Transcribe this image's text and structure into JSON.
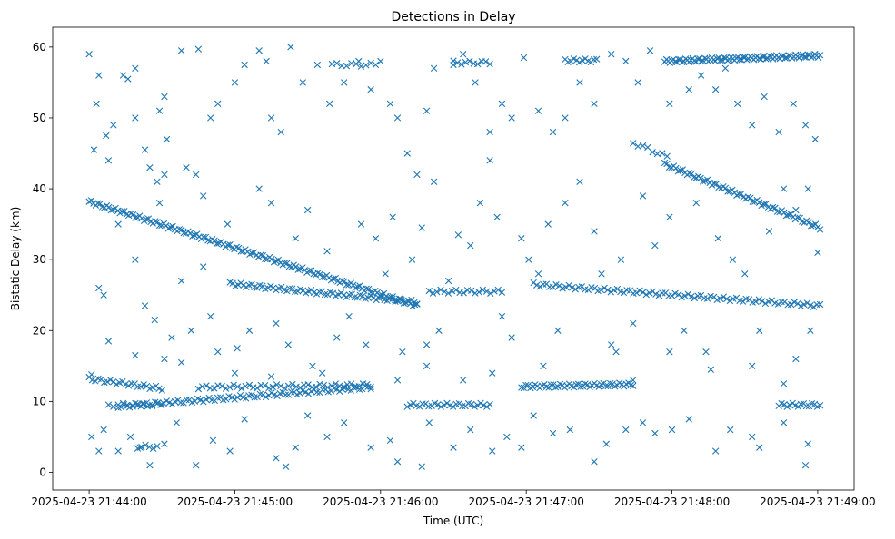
{
  "chart_data": {
    "type": "scatter",
    "title": "Detections in Delay",
    "xlabel": "Time (UTC)",
    "ylabel": "Bistatic Delay (km)",
    "x_units": "seconds after 2025-04-23 21:44:00",
    "xlim": [
      -15,
      315
    ],
    "ylim": [
      -2.5,
      62.8
    ],
    "x_ticks": [
      {
        "value": 0,
        "label": "2025-04-23 21:44:00"
      },
      {
        "value": 60,
        "label": "2025-04-23 21:45:00"
      },
      {
        "value": 120,
        "label": "2025-04-23 21:46:00"
      },
      {
        "value": 180,
        "label": "2025-04-23 21:47:00"
      },
      {
        "value": 240,
        "label": "2025-04-23 21:48:00"
      },
      {
        "value": 300,
        "label": "2025-04-23 21:49:00"
      }
    ],
    "y_ticks": [
      0,
      10,
      20,
      30,
      40,
      50,
      60
    ],
    "marker": "x",
    "color": "#1f77b4",
    "grid": false,
    "tracks": [
      {
        "x": [
          0,
          135
        ],
        "y": [
          38.2,
          23.5
        ],
        "n": 150
      },
      {
        "x": [
          58,
          135
        ],
        "y": [
          26.6,
          24.0
        ],
        "n": 70
      },
      {
        "x": [
          0,
          30
        ],
        "y": [
          13.2,
          11.8
        ],
        "n": 25
      },
      {
        "x": [
          8,
          30
        ],
        "y": [
          9.5,
          9.5
        ],
        "n": 12
      },
      {
        "x": [
          12,
          116
        ],
        "y": [
          9.3,
          12.0
        ],
        "n": 90
      },
      {
        "x": [
          45,
          116
        ],
        "y": [
          12.0,
          12.3
        ],
        "n": 45
      },
      {
        "x": [
          237,
          301
        ],
        "y": [
          58.0,
          58.8
        ],
        "n": 90
      },
      {
        "x": [
          237,
          301
        ],
        "y": [
          43.5,
          34.5
        ],
        "n": 70
      },
      {
        "x": [
          183,
          301
        ],
        "y": [
          26.5,
          23.5
        ],
        "n": 90
      },
      {
        "x": [
          140,
          170
        ],
        "y": [
          25.5,
          25.5
        ],
        "n": 20
      },
      {
        "x": [
          178,
          224
        ],
        "y": [
          12.1,
          12.4
        ],
        "n": 50
      },
      {
        "x": [
          131,
          165
        ],
        "y": [
          9.5,
          9.5
        ],
        "n": 28
      },
      {
        "x": [
          284,
          301
        ],
        "y": [
          9.5,
          9.5
        ],
        "n": 16
      },
      {
        "x": [
          100,
          118
        ],
        "y": [
          57.5,
          57.5
        ],
        "n": 10
      },
      {
        "x": [
          150,
          165
        ],
        "y": [
          57.8,
          57.8
        ],
        "n": 10
      },
      {
        "x": [
          196,
          209
        ],
        "y": [
          58.1,
          58.1
        ],
        "n": 12
      },
      {
        "x": [
          224,
          238
        ],
        "y": [
          46.5,
          44.5
        ],
        "n": 8
      },
      {
        "x": [
          20,
          28
        ],
        "y": [
          3.6,
          3.6
        ],
        "n": 6
      }
    ],
    "points": [
      [
        0,
        59
      ],
      [
        3,
        52
      ],
      [
        4,
        56
      ],
      [
        7,
        47.5
      ],
      [
        8,
        44
      ],
      [
        2,
        45.5
      ],
      [
        10,
        49
      ],
      [
        14,
        56
      ],
      [
        16,
        55.5
      ],
      [
        19,
        57
      ],
      [
        19,
        50
      ],
      [
        23,
        45.5
      ],
      [
        25,
        43
      ],
      [
        28,
        41
      ],
      [
        29,
        38
      ],
      [
        31,
        42
      ],
      [
        32,
        47
      ],
      [
        29,
        51
      ],
      [
        31,
        53
      ],
      [
        38,
        59.5
      ],
      [
        45,
        59.7
      ],
      [
        40,
        43
      ],
      [
        44,
        42
      ],
      [
        47,
        39
      ],
      [
        50,
        50
      ],
      [
        53,
        52
      ],
      [
        60,
        55
      ],
      [
        64,
        57.5
      ],
      [
        70,
        59.5
      ],
      [
        73,
        58
      ],
      [
        75,
        50
      ],
      [
        79,
        48
      ],
      [
        83,
        60
      ],
      [
        88,
        55
      ],
      [
        94,
        57.5
      ],
      [
        99,
        52
      ],
      [
        105,
        55
      ],
      [
        111,
        58
      ],
      [
        116,
        54
      ],
      [
        120,
        58
      ],
      [
        124,
        52
      ],
      [
        127,
        50
      ],
      [
        131,
        45
      ],
      [
        135,
        42
      ],
      [
        139,
        51
      ],
      [
        142,
        57
      ],
      [
        150,
        57.5
      ],
      [
        154,
        59
      ],
      [
        159,
        55
      ],
      [
        165,
        48
      ],
      [
        170,
        52
      ],
      [
        174,
        50
      ],
      [
        179,
        58.5
      ],
      [
        185,
        51
      ],
      [
        191,
        48
      ],
      [
        196,
        50
      ],
      [
        202,
        55
      ],
      [
        208,
        52
      ],
      [
        215,
        59
      ],
      [
        221,
        58
      ],
      [
        226,
        55
      ],
      [
        231,
        59.5
      ],
      [
        239,
        52
      ],
      [
        247,
        54
      ],
      [
        252,
        56
      ],
      [
        258,
        54
      ],
      [
        262,
        57
      ],
      [
        267,
        52
      ],
      [
        273,
        49
      ],
      [
        278,
        53
      ],
      [
        284,
        48
      ],
      [
        290,
        52
      ],
      [
        295,
        49
      ],
      [
        299,
        47
      ],
      [
        4,
        26
      ],
      [
        6,
        25
      ],
      [
        8,
        18.5
      ],
      [
        12,
        35
      ],
      [
        19,
        30
      ],
      [
        23,
        23.5
      ],
      [
        27,
        21.5
      ],
      [
        31,
        16
      ],
      [
        34,
        19
      ],
      [
        38,
        27
      ],
      [
        42,
        20
      ],
      [
        47,
        29
      ],
      [
        50,
        22
      ],
      [
        53,
        17
      ],
      [
        57,
        35
      ],
      [
        61,
        17.5
      ],
      [
        66,
        20
      ],
      [
        70,
        40
      ],
      [
        75,
        38
      ],
      [
        77,
        21
      ],
      [
        82,
        18
      ],
      [
        85,
        33
      ],
      [
        90,
        37
      ],
      [
        92,
        15
      ],
      [
        98,
        31.2
      ],
      [
        102,
        19
      ],
      [
        107,
        22
      ],
      [
        112,
        35
      ],
      [
        114,
        18
      ],
      [
        118,
        33
      ],
      [
        122,
        28
      ],
      [
        125,
        36
      ],
      [
        129,
        17
      ],
      [
        133,
        30
      ],
      [
        137,
        34.5
      ],
      [
        139,
        18
      ],
      [
        142,
        41
      ],
      [
        144,
        20
      ],
      [
        148,
        27
      ],
      [
        152,
        33.5
      ],
      [
        157,
        32
      ],
      [
        161,
        38
      ],
      [
        165,
        44
      ],
      [
        168,
        36
      ],
      [
        170,
        22
      ],
      [
        174,
        19
      ],
      [
        178,
        33
      ],
      [
        181,
        30
      ],
      [
        185,
        28
      ],
      [
        189,
        35
      ],
      [
        193,
        20
      ],
      [
        196,
        38
      ],
      [
        202,
        41
      ],
      [
        208,
        34
      ],
      [
        211,
        28
      ],
      [
        215,
        18
      ],
      [
        219,
        30
      ],
      [
        224,
        21
      ],
      [
        228,
        39
      ],
      [
        233,
        32
      ],
      [
        239,
        36
      ],
      [
        245,
        20
      ],
      [
        250,
        38
      ],
      [
        254,
        17
      ],
      [
        259,
        33
      ],
      [
        265,
        30
      ],
      [
        270,
        28
      ],
      [
        276,
        20
      ],
      [
        280,
        34
      ],
      [
        286,
        40
      ],
      [
        291,
        37
      ],
      [
        296,
        40
      ],
      [
        300,
        31
      ],
      [
        297,
        20
      ],
      [
        1,
        5
      ],
      [
        4,
        3
      ],
      [
        6,
        6
      ],
      [
        12,
        3
      ],
      [
        17,
        5
      ],
      [
        21,
        3.5
      ],
      [
        25,
        1
      ],
      [
        31,
        4
      ],
      [
        36,
        7
      ],
      [
        44,
        1
      ],
      [
        51,
        4.5
      ],
      [
        58,
        3
      ],
      [
        64,
        7.5
      ],
      [
        77,
        2
      ],
      [
        81,
        0.8
      ],
      [
        85,
        3.5
      ],
      [
        90,
        8
      ],
      [
        98,
        5
      ],
      [
        105,
        7
      ],
      [
        116,
        3.5
      ],
      [
        124,
        4.5
      ],
      [
        127,
        1.5
      ],
      [
        137,
        0.8
      ],
      [
        140,
        7
      ],
      [
        150,
        3.5
      ],
      [
        157,
        6
      ],
      [
        166,
        3
      ],
      [
        172,
        5
      ],
      [
        178,
        3.5
      ],
      [
        183,
        8
      ],
      [
        191,
        5.5
      ],
      [
        198,
        6
      ],
      [
        208,
        1.5
      ],
      [
        213,
        4
      ],
      [
        221,
        6
      ],
      [
        228,
        7
      ],
      [
        233,
        5.5
      ],
      [
        240,
        6
      ],
      [
        247,
        7.5
      ],
      [
        258,
        3
      ],
      [
        264,
        6
      ],
      [
        273,
        5
      ],
      [
        276,
        3.5
      ],
      [
        286,
        7
      ],
      [
        295,
        1
      ],
      [
        296,
        4
      ],
      [
        1,
        13.8
      ],
      [
        19,
        16.5
      ],
      [
        38,
        15.5
      ],
      [
        60,
        14
      ],
      [
        75,
        13.5
      ],
      [
        96,
        14
      ],
      [
        127,
        13
      ],
      [
        139,
        15
      ],
      [
        154,
        13
      ],
      [
        166,
        14
      ],
      [
        187,
        15
      ],
      [
        217,
        17
      ],
      [
        224,
        13
      ],
      [
        239,
        17
      ],
      [
        256,
        14.5
      ],
      [
        273,
        15
      ],
      [
        286,
        12.5
      ],
      [
        291,
        16
      ]
    ]
  }
}
